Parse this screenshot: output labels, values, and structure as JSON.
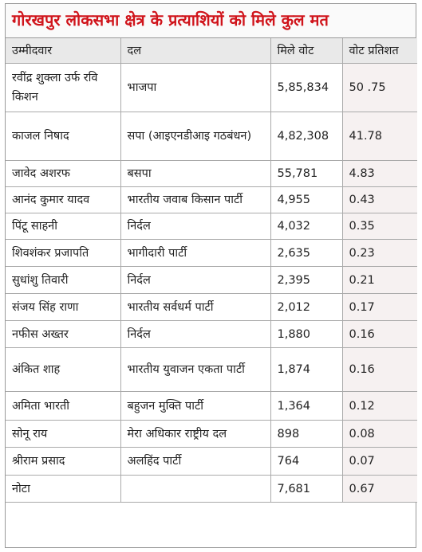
{
  "title": "गोरखपुर लोकसभा क्षेत्र के प्रत्याशियों को मिले कुल मत",
  "table": {
    "header": [
      "उम्मीदवार",
      "दल",
      "मिले वोट",
      "वोट प्रतिशत"
    ],
    "rows": [
      [
        "रवींद्र शुक्ला उर्फ रवि किशन",
        "भाजपा",
        "5,85,834",
        "50 .75"
      ],
      [
        "काजल निषाद",
        "सपा (आइएनडीआइ गठबंधन)",
        "4,82,308",
        "41.78"
      ],
      [
        "जावेद अशरफ",
        "बसपा",
        "55,781",
        "4.83"
      ],
      [
        "आनंद कुमार यादव",
        "भारतीय जवाब किसान पार्टी",
        "4,955",
        "0.43"
      ],
      [
        "पिंटू साहनी",
        "निर्दल",
        "4,032",
        "0.35"
      ],
      [
        "शिवशंकर प्रजापति",
        "भागीदारी पार्टी",
        "2,635",
        "0.23"
      ],
      [
        "सुधांशु तिवारी",
        "निर्दल",
        "2,395",
        "0.21"
      ],
      [
        "संजय सिंह राणा",
        "भारतीय सर्वधर्म पार्टी",
        "2,012",
        "0.17"
      ],
      [
        "नफीस अख्तर",
        "निर्दल",
        "1,880",
        "0.16"
      ],
      [
        "अंकित शाह",
        "भारतीय युवाजन एकता पार्टी",
        "1,874",
        "0.16"
      ],
      [
        "अमिता भारती",
        "बहुजन मुक्ति पार्टी",
        "1,364",
        "0.12"
      ],
      [
        "सोनू राय",
        "मेरा अधिकार राष्ट्रीय दल",
        "898",
        "0.08"
      ],
      [
        "श्रीराम प्रसाद",
        "अलहिंद पार्टी",
        "764",
        "0.07"
      ],
      [
        "नोटा",
        null,
        "7,681",
        "0.67"
      ]
    ]
  }
}
